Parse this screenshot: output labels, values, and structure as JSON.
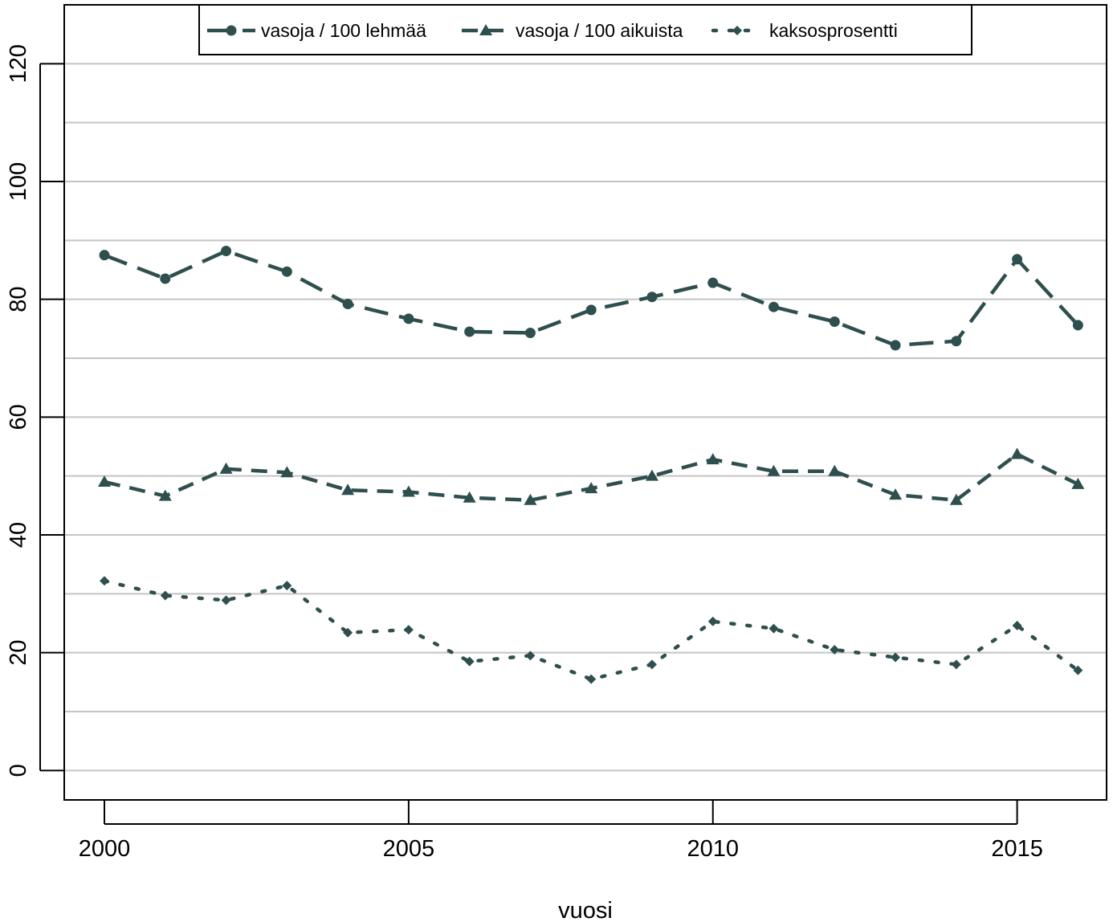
{
  "chart_data": {
    "type": "line",
    "title": "",
    "xlabel": "vuosi",
    "ylabel": "",
    "x": [
      2000,
      2001,
      2002,
      2003,
      2004,
      2005,
      2006,
      2007,
      2008,
      2009,
      2010,
      2011,
      2012,
      2013,
      2014,
      2015,
      2016
    ],
    "xlim": [
      1999.34,
      2016.47
    ],
    "ylim": [
      -5,
      130
    ],
    "xticks": [
      2000,
      2005,
      2010,
      2015
    ],
    "xtick_labels": [
      "2000",
      "2005",
      "2010",
      "2015"
    ],
    "yticks": [
      0,
      20,
      40,
      60,
      80,
      100,
      120
    ],
    "ytick_labels": [
      "0",
      "20",
      "40",
      "60",
      "80",
      "100",
      "120"
    ],
    "gridlines_y": [
      0,
      10,
      20,
      30,
      40,
      50,
      60,
      70,
      80,
      90,
      100,
      110,
      120
    ],
    "grid": true,
    "legend_position": "top",
    "series": [
      {
        "name": "vasoja / 100 lehmää",
        "marker": "circle",
        "line_style": "long-dash",
        "color": "#2f4f4f",
        "values": [
          87.5,
          83.5,
          88.2,
          84.7,
          79.2,
          76.7,
          74.5,
          74.3,
          78.2,
          80.4,
          82.8,
          78.7,
          76.2,
          72.2,
          72.9,
          86.8,
          75.6
        ]
      },
      {
        "name": "vasoja / 100 aikuista",
        "marker": "triangle",
        "line_style": "dash",
        "color": "#2f4f4f",
        "values": [
          49.0,
          46.6,
          51.2,
          50.6,
          47.6,
          47.3,
          46.3,
          45.9,
          47.9,
          50.0,
          52.8,
          50.8,
          50.8,
          46.8,
          45.9,
          53.7,
          48.6
        ]
      },
      {
        "name": "kaksosprosentti",
        "marker": "diamond",
        "line_style": "dot",
        "color": "#2f4f4f",
        "values": [
          32.2,
          29.7,
          28.9,
          31.4,
          23.4,
          23.9,
          18.5,
          19.5,
          15.5,
          18.0,
          25.3,
          24.1,
          20.5,
          19.2,
          18.0,
          24.6,
          17.0
        ]
      }
    ]
  }
}
